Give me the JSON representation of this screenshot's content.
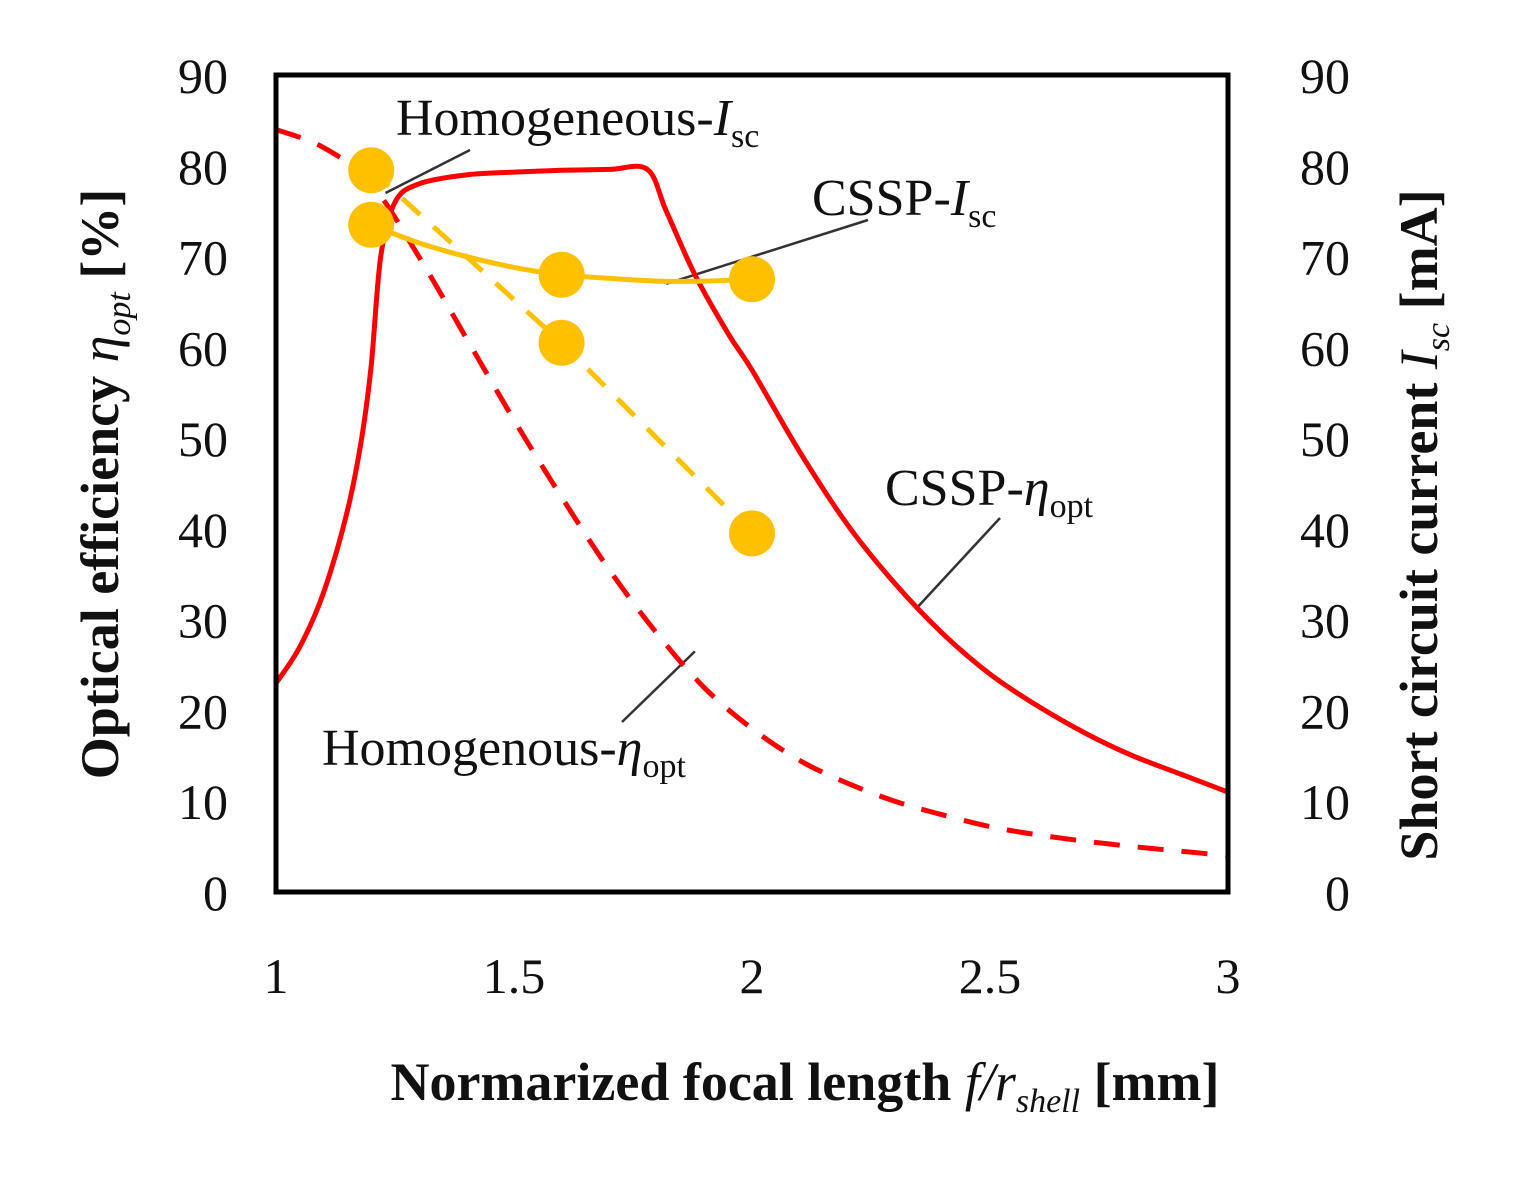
{
  "chart_data": {
    "type": "line",
    "xlabel": {
      "main": "Normarized focal length ",
      "var": "f/r",
      "sub": "shell",
      "unit": " [mm]"
    },
    "ylabel_left": {
      "main": "Optical efficiency ",
      "var": "η",
      "sub": "opt",
      "unit": " [%]"
    },
    "ylabel_right": {
      "main": "Short circuit current ",
      "var": "I",
      "sub": "sc",
      "unit": " [mA]"
    },
    "xlim": [
      1,
      3
    ],
    "ylim_left": [
      0,
      90
    ],
    "ylim_right": [
      0,
      90
    ],
    "x_ticks": [
      "1",
      "1.5",
      "2",
      "2.5",
      "3"
    ],
    "y_ticks_left": [
      "0",
      "10",
      "20",
      "30",
      "40",
      "50",
      "60",
      "70",
      "80",
      "90"
    ],
    "y_ticks_right": [
      "0",
      "10",
      "20",
      "30",
      "40",
      "50",
      "60",
      "70",
      "80",
      "90"
    ],
    "colors": {
      "red": "#ff0000",
      "gold": "#ffc000",
      "axis": "#000000"
    },
    "series": [
      {
        "name": "CSSP-η_opt",
        "axis": "left",
        "style": "solid",
        "color": "#ff0000",
        "x": [
          1.0,
          1.05,
          1.1,
          1.15,
          1.18,
          1.2,
          1.22,
          1.25,
          1.3,
          1.4,
          1.5,
          1.6,
          1.7,
          1.78,
          1.82,
          1.88,
          1.95,
          2.0,
          2.1,
          2.2,
          2.3,
          2.4,
          2.5,
          2.6,
          2.7,
          2.8,
          2.9,
          3.0
        ],
        "y": [
          23,
          27,
          33,
          42,
          50,
          58,
          70,
          76,
          78,
          79,
          79.3,
          79.5,
          79.6,
          79.6,
          75,
          68,
          61.5,
          57.5,
          48.5,
          40.5,
          34,
          28.5,
          24,
          20.5,
          17.5,
          15,
          13,
          11
        ]
      },
      {
        "name": "Homogenous-η_opt",
        "axis": "left",
        "style": "dashed",
        "color": "#ff0000",
        "x": [
          1.0,
          1.1,
          1.2,
          1.3,
          1.4,
          1.5,
          1.6,
          1.7,
          1.8,
          1.9,
          2.0,
          2.1,
          2.2,
          2.3,
          2.4,
          2.5,
          2.6,
          2.7,
          2.8,
          2.9,
          3.0
        ],
        "y": [
          84,
          82,
          78,
          70,
          61,
          52,
          43.5,
          35.5,
          28.5,
          22.5,
          18,
          14.5,
          12,
          10,
          8.5,
          7.2,
          6.3,
          5.6,
          5.0,
          4.5,
          4.0
        ]
      },
      {
        "name": "Homogeneous-I_sc",
        "axis": "right",
        "style": "dashed-markers",
        "color": "#ffc000",
        "x": [
          1.2,
          1.6,
          2.0
        ],
        "y": [
          79.5,
          60.5,
          39.5
        ]
      },
      {
        "name": "CSSP-I_sc",
        "axis": "right",
        "style": "solid-markers",
        "color": "#ffc000",
        "x": [
          1.2,
          1.6,
          2.0
        ],
        "y": [
          73.5,
          68,
          67.5
        ],
        "curve_x": [
          1.2,
          1.3,
          1.4,
          1.5,
          1.6,
          1.7,
          1.8,
          1.9,
          2.0
        ],
        "curve_y": [
          73.5,
          71.5,
          70,
          68.8,
          68,
          67.6,
          67.3,
          67.3,
          67.5
        ]
      }
    ],
    "annotations": [
      {
        "base": "Homogeneous-",
        "var": "I",
        "sub": "sc",
        "series": "Homogeneous-I_sc",
        "point": [
          1.23,
          77
        ]
      },
      {
        "base": "CSSP-",
        "var": "I",
        "sub": "sc",
        "series": "CSSP-I_sc",
        "point": [
          1.82,
          67
        ]
      },
      {
        "base": "CSSP-",
        "var": "η",
        "sub": "opt",
        "series": "CSSP-η_opt",
        "point": [
          2.35,
          31.5
        ]
      },
      {
        "base": "Homogenous-",
        "var": "η",
        "sub": "opt",
        "series": "Homogenous-η_opt",
        "point": [
          1.88,
          26.5
        ]
      }
    ]
  }
}
